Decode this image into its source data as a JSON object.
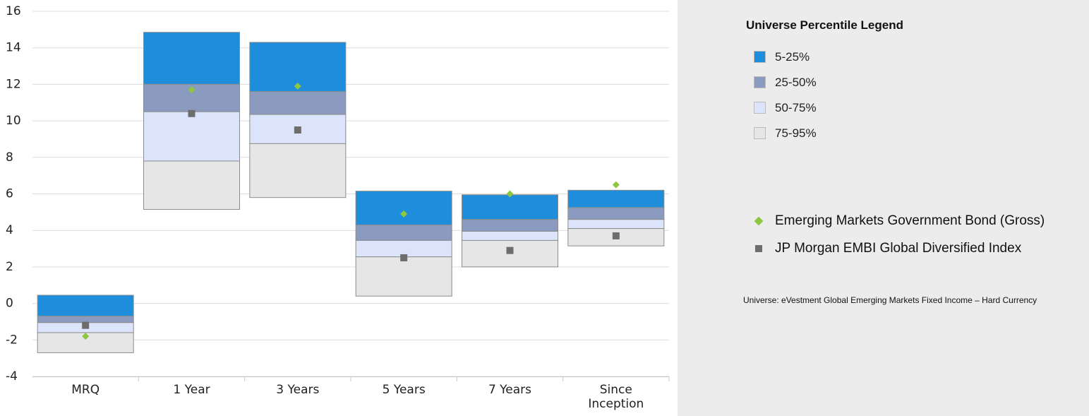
{
  "chart_data": {
    "type": "floating_bar",
    "categories": [
      "MRQ",
      "1 Year",
      "3 Years",
      "5 Years",
      "7 Years",
      "Since Inception"
    ],
    "ylim": [
      -4,
      16
    ],
    "yticks": [
      -4,
      -2,
      0,
      2,
      4,
      6,
      8,
      10,
      12,
      14,
      16
    ],
    "grid": true,
    "legend_title": "Universe Percentile Legend",
    "bands": [
      {
        "name": "5-25%",
        "color": "#1e8ddb",
        "low": [
          -0.7,
          12.0,
          11.6,
          4.3,
          4.6,
          5.25
        ],
        "high": [
          0.45,
          14.85,
          14.3,
          6.15,
          5.95,
          6.2
        ]
      },
      {
        "name": "25-50%",
        "color": "#8a9bbf",
        "low": [
          -1.05,
          10.5,
          10.35,
          3.45,
          3.95,
          4.6
        ],
        "high": [
          -0.7,
          12.0,
          11.6,
          4.3,
          4.6,
          5.25
        ]
      },
      {
        "name": "50-75%",
        "color": "#dbe4fa",
        "low": [
          -1.6,
          7.8,
          8.75,
          2.55,
          3.45,
          4.1
        ],
        "high": [
          -1.05,
          10.5,
          10.35,
          3.45,
          3.95,
          4.6
        ]
      },
      {
        "name": "75-95%",
        "color": "#e6e6e6",
        "low": [
          -2.7,
          5.15,
          5.8,
          0.4,
          2.0,
          3.15
        ],
        "high": [
          -1.6,
          7.8,
          8.75,
          2.55,
          3.45,
          4.1
        ]
      }
    ],
    "series": [
      {
        "name": "Emerging Markets Government Bond (Gross)",
        "color": "#8dc63f",
        "marker": "diamond",
        "values": [
          -1.8,
          11.7,
          11.9,
          4.9,
          6.0,
          6.5
        ]
      },
      {
        "name": "JP Morgan EMBI Global Diversified Index",
        "color": "#6d6d6d",
        "marker": "square",
        "values": [
          -1.2,
          10.4,
          9.5,
          2.5,
          2.9,
          3.7
        ]
      }
    ],
    "note": "Universe: eVestment Global Emerging Markets Fixed Income – Hard Currency"
  }
}
